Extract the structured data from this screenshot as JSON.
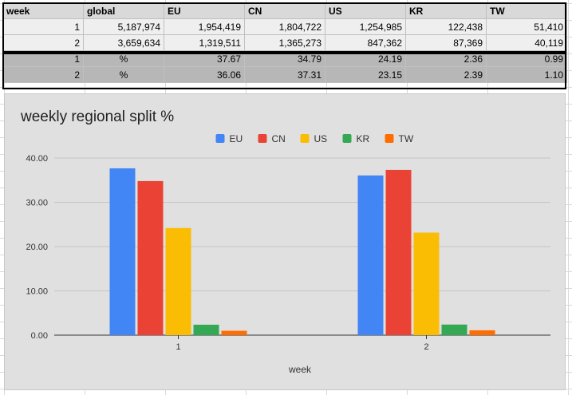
{
  "table": {
    "headers": [
      "week",
      "global",
      "EU",
      "CN",
      "US",
      "KR",
      "TW"
    ],
    "count_rows": [
      [
        "1",
        "5,187,974",
        "1,954,419",
        "1,804,722",
        "1,254,985",
        "122,438",
        "51,410"
      ],
      [
        "2",
        "3,659,634",
        "1,319,511",
        "1,365,273",
        "847,362",
        "87,369",
        "40,119"
      ]
    ],
    "percent_rows": [
      [
        "1",
        "%",
        "37.67",
        "34.79",
        "24.19",
        "2.36",
        "0.99"
      ],
      [
        "2",
        "%",
        "36.06",
        "37.31",
        "23.15",
        "2.39",
        "1.10"
      ]
    ]
  },
  "chart_data": {
    "type": "bar",
    "title": "weekly regional split %",
    "xlabel": "week",
    "ylabel": "",
    "categories": [
      "1",
      "2"
    ],
    "series": [
      {
        "name": "EU",
        "color": "#4285f4",
        "values": [
          37.67,
          36.06
        ]
      },
      {
        "name": "CN",
        "color": "#ea4335",
        "values": [
          34.79,
          37.31
        ]
      },
      {
        "name": "US",
        "color": "#fbbc04",
        "values": [
          24.19,
          23.15
        ]
      },
      {
        "name": "KR",
        "color": "#34a853",
        "values": [
          2.36,
          2.39
        ]
      },
      {
        "name": "TW",
        "color": "#ff6d01",
        "values": [
          0.99,
          1.1
        ]
      }
    ],
    "ylim": [
      0,
      40
    ],
    "yticks": [
      "0.00",
      "10.00",
      "20.00",
      "30.00",
      "40.00"
    ],
    "grid": true,
    "legend_position": "top-center"
  }
}
